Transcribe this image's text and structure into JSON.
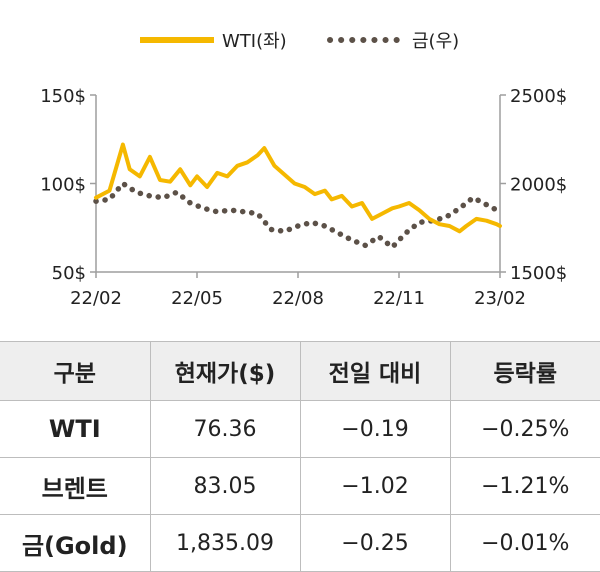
{
  "chart_data": {
    "type": "line",
    "legend": {
      "placement": "top-center"
    },
    "grid": false,
    "x_ticks": [
      "22/02",
      "22/05",
      "22/08",
      "22/11",
      "23/02"
    ],
    "y_left": {
      "ticks": [
        "150$",
        "100$",
        "50$"
      ],
      "min": 50,
      "max": 150,
      "unit": "$"
    },
    "y_right": {
      "ticks": [
        "2500$",
        "2000$",
        "1500$"
      ],
      "min": 1500,
      "max": 2500,
      "unit": "$"
    },
    "series": [
      {
        "name": "WTI(좌)",
        "axis": "left",
        "style": "solid",
        "color": "#f5b800",
        "x": [
          0,
          0.4,
          0.8,
          1.0,
          1.3,
          1.6,
          1.9,
          2.2,
          2.5,
          2.8,
          3.0,
          3.3,
          3.6,
          3.9,
          4.2,
          4.5,
          4.8,
          5.0,
          5.3,
          5.6,
          5.9,
          6.2,
          6.5,
          6.8,
          7.0,
          7.3,
          7.6,
          7.9,
          8.2,
          8.5,
          8.8,
          9.0,
          9.3,
          9.6,
          9.9,
          10.2,
          10.5,
          10.8,
          11.0,
          11.3,
          11.6,
          11.9,
          12.0
        ],
        "values": [
          92,
          96,
          122,
          108,
          104,
          115,
          102,
          101,
          108,
          99,
          104,
          98,
          106,
          104,
          110,
          112,
          116,
          120,
          110,
          105,
          100,
          98,
          94,
          96,
          91,
          93,
          87,
          89,
          80,
          83,
          86,
          87,
          89,
          85,
          80,
          77,
          76,
          73,
          76,
          80,
          79,
          77,
          76
        ]
      },
      {
        "name": "금(우)",
        "axis": "right",
        "style": "dotted",
        "color": "#5c5148",
        "x": [
          0,
          0.4,
          0.8,
          1.2,
          1.6,
          2.0,
          2.4,
          2.8,
          3.2,
          3.6,
          4.0,
          4.4,
          4.8,
          5.2,
          5.6,
          6.0,
          6.4,
          6.8,
          7.2,
          7.6,
          8.0,
          8.4,
          8.8,
          9.2,
          9.6,
          10.0,
          10.4,
          10.8,
          11.2,
          11.6,
          12.0
        ],
        "values": [
          1900,
          1910,
          2000,
          1950,
          1930,
          1920,
          1950,
          1890,
          1860,
          1840,
          1850,
          1840,
          1830,
          1740,
          1730,
          1760,
          1780,
          1760,
          1720,
          1680,
          1650,
          1700,
          1640,
          1720,
          1780,
          1790,
          1810,
          1860,
          1920,
          1880,
          1840
        ]
      }
    ]
  },
  "table": {
    "headers": [
      "구분",
      "현재가($)",
      "전일 대비",
      "등락률"
    ],
    "rows": [
      [
        "WTI",
        "76.36",
        "−0.19",
        "−0.25%"
      ],
      [
        "브렌트",
        "83.05",
        "−1.02",
        "−1.21%"
      ],
      [
        "금(Gold)",
        "1,835.09",
        "−0.25",
        "−0.01%"
      ]
    ]
  }
}
